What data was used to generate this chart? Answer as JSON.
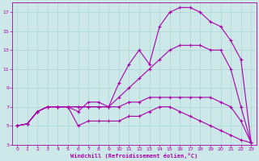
{
  "background_color": "#cce8e8",
  "line_color": "#aa00aa",
  "grid_color": "#aad4d4",
  "xlabel": "Windchill (Refroidissement éolien,°C)",
  "xlim": [
    -0.5,
    23.5
  ],
  "ylim": [
    3,
    18
  ],
  "xticks": [
    0,
    1,
    2,
    3,
    4,
    5,
    6,
    7,
    8,
    9,
    10,
    11,
    12,
    13,
    14,
    15,
    16,
    17,
    18,
    19,
    20,
    21,
    22,
    23
  ],
  "yticks": [
    3,
    5,
    7,
    9,
    11,
    13,
    15,
    17
  ],
  "lines": [
    {
      "x": [
        0,
        1,
        2,
        3,
        4,
        5,
        6,
        7,
        8,
        9,
        10,
        11,
        12,
        13,
        14,
        15,
        16,
        17,
        18,
        19,
        20,
        21,
        22,
        23
      ],
      "y": [
        5,
        5.2,
        6.5,
        7,
        7,
        7,
        7,
        7,
        7,
        7,
        9.5,
        11.5,
        13,
        11.5,
        15.5,
        17,
        17.5,
        17.5,
        17,
        16,
        15.5,
        14,
        12,
        3.2
      ]
    },
    {
      "x": [
        0,
        1,
        2,
        3,
        4,
        5,
        6,
        7,
        8,
        9,
        10,
        11,
        12,
        13,
        14,
        15,
        16,
        17,
        18,
        19,
        20,
        21,
        22,
        23
      ],
      "y": [
        5,
        5.2,
        6.5,
        7,
        7,
        7,
        7,
        7,
        7,
        7,
        8,
        9,
        10,
        11,
        12,
        13,
        13.5,
        13.5,
        13.5,
        13,
        13,
        11,
        7,
        3.2
      ]
    },
    {
      "x": [
        0,
        1,
        2,
        3,
        4,
        5,
        6,
        7,
        8,
        9,
        10,
        11,
        12,
        13,
        14,
        15,
        16,
        17,
        18,
        19,
        20,
        21,
        22,
        23
      ],
      "y": [
        5,
        5.2,
        6.5,
        7,
        7,
        7,
        6.5,
        7.5,
        7.5,
        7,
        7,
        7.5,
        7.5,
        8,
        8,
        8,
        8,
        8,
        8,
        8,
        7.5,
        7,
        5.5,
        3.2
      ]
    },
    {
      "x": [
        0,
        1,
        2,
        3,
        4,
        5,
        6,
        7,
        8,
        9,
        10,
        11,
        12,
        13,
        14,
        15,
        16,
        17,
        18,
        19,
        20,
        21,
        22,
        23
      ],
      "y": [
        5,
        5.2,
        6.5,
        7,
        7,
        7,
        5,
        5.5,
        5.5,
        5.5,
        5.5,
        6,
        6,
        6.5,
        7,
        7,
        6.5,
        6,
        5.5,
        5,
        4.5,
        4,
        3.5,
        3.2
      ]
    }
  ]
}
